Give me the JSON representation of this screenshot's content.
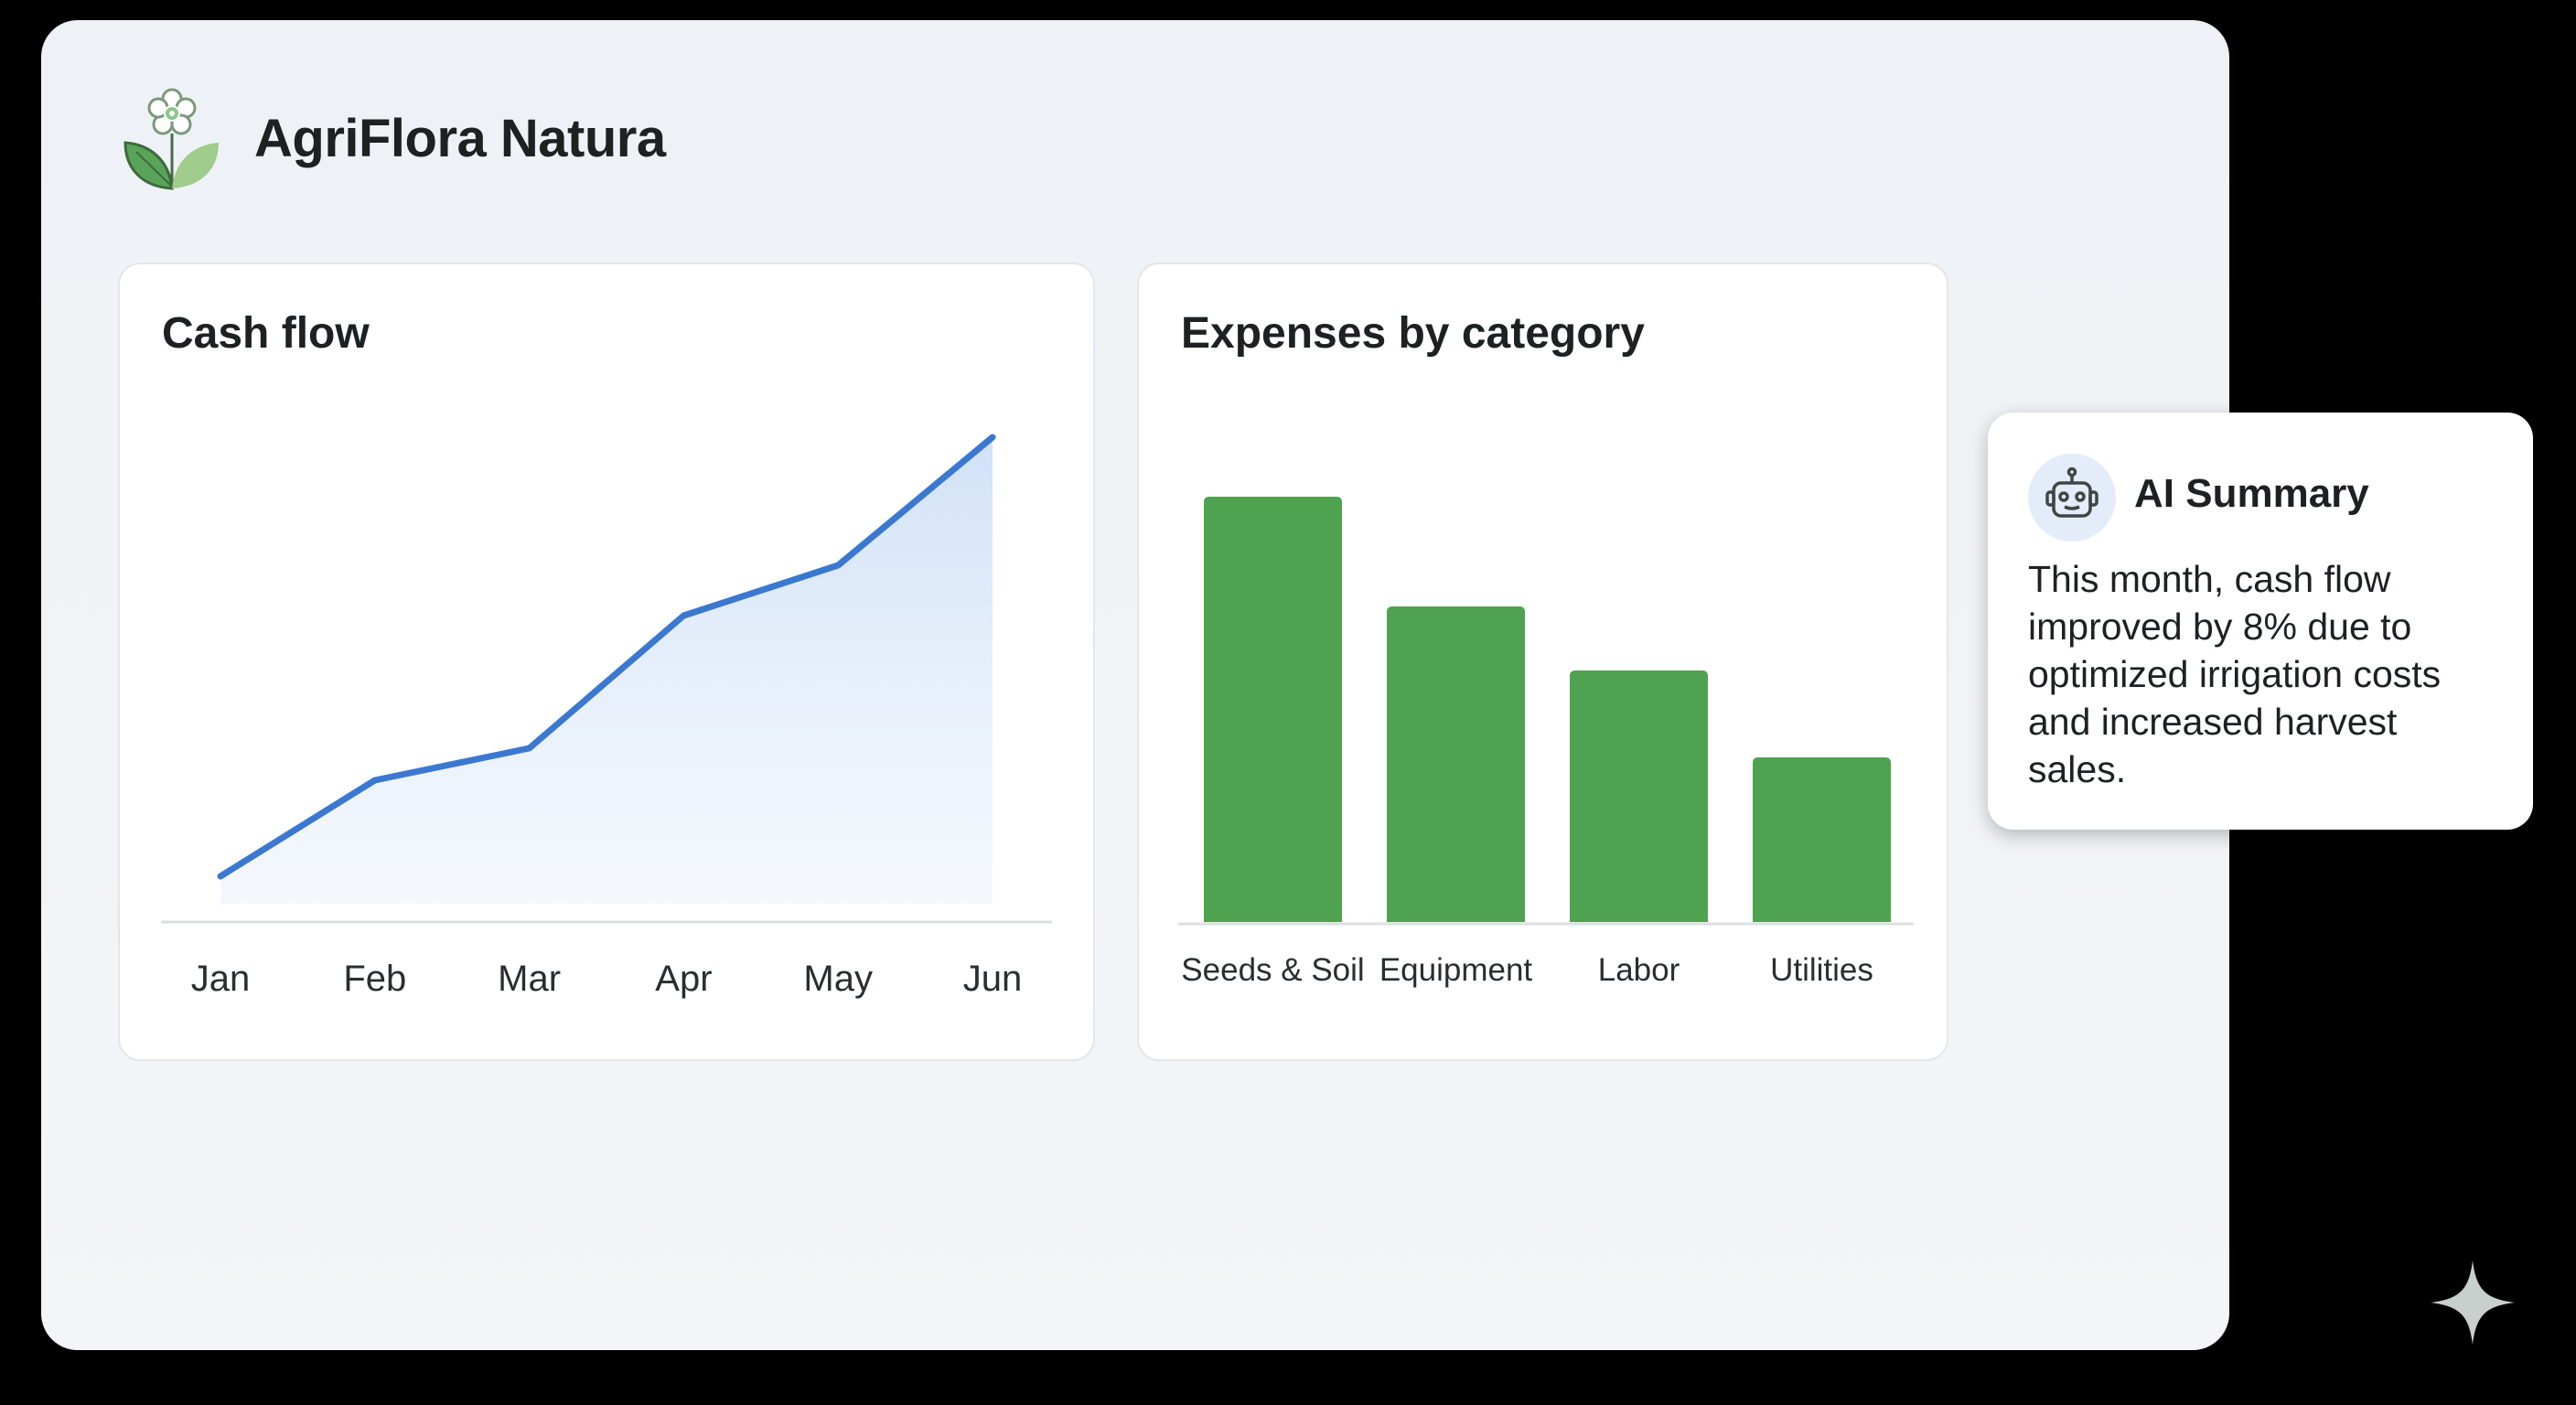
{
  "app": {
    "title": "AgriFlora Natura",
    "logo_icon": "flower-sprout-icon"
  },
  "colors": {
    "line": "#3b78d0",
    "area": "#dbe7f8",
    "bar": "#4fa350",
    "panel": "#f0f3f6"
  },
  "cards": {
    "cash_flow": {
      "title": "Cash flow"
    },
    "expenses": {
      "title": "Expenses by category"
    }
  },
  "chart_data": [
    {
      "type": "area",
      "title": "Cash flow",
      "categories": [
        "Jan",
        "Feb",
        "Mar",
        "Apr",
        "May",
        "Jun"
      ],
      "values": [
        10,
        31,
        38,
        67,
        78,
        106
      ],
      "ylim": [
        0,
        120
      ],
      "grid": false
    },
    {
      "type": "bar",
      "title": "Expenses by category",
      "categories": [
        "Seeds & Soil",
        "Equipment",
        "Labor",
        "Utilities"
      ],
      "values": [
        93,
        69,
        55,
        36
      ],
      "ylim": [
        0,
        100
      ],
      "grid": false
    }
  ],
  "ai_summary": {
    "icon": "robot-icon",
    "title": "AI Summary",
    "text": "This month, cash flow improved by 8% due to optimized irrigation costs and increased harvest sales."
  },
  "watermark_icon": "sparkle-icon"
}
